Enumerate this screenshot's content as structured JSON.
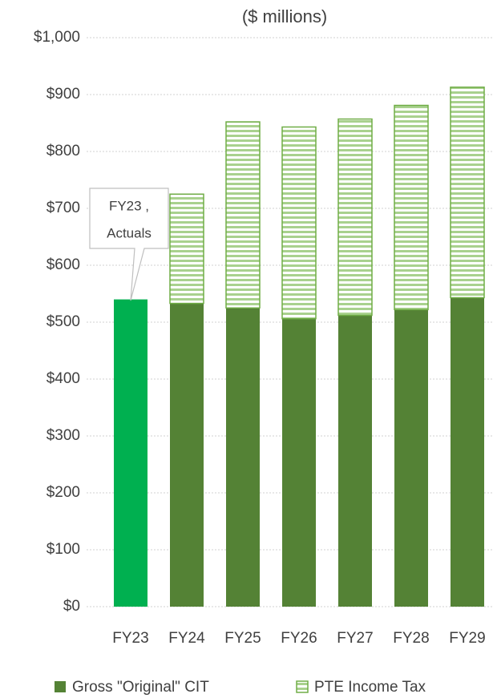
{
  "chart_data": {
    "type": "stacked_bar",
    "title": "($ millions)",
    "categories": [
      "FY23",
      "FY24",
      "FY25",
      "FY26",
      "FY27",
      "FY28",
      "FY29"
    ],
    "series": [
      {
        "name": "Gross \"Original\" CIT",
        "color": "#548235",
        "colors": [
          "#00b050",
          "#548235",
          "#548235",
          "#548235",
          "#548235",
          "#548235",
          "#548235"
        ],
        "values": [
          540,
          533,
          525,
          506,
          512,
          522,
          543
        ]
      },
      {
        "name": "PTE Income Tax",
        "color": "#70ad47",
        "pattern": "horizontal-stripes",
        "values": [
          null,
          192,
          327,
          337,
          345,
          359,
          370
        ]
      }
    ],
    "ylim": [
      0,
      1000
    ],
    "yticks": [
      {
        "value": 0,
        "label": "$0"
      },
      {
        "value": 100,
        "label": "$100"
      },
      {
        "value": 200,
        "label": "$200"
      },
      {
        "value": 300,
        "label": "$300"
      },
      {
        "value": 400,
        "label": "$400"
      },
      {
        "value": 500,
        "label": "$500"
      },
      {
        "value": 600,
        "label": "$600"
      },
      {
        "value": 700,
        "label": "$700"
      },
      {
        "value": 800,
        "label": "$800"
      },
      {
        "value": 900,
        "label": "$900"
      },
      {
        "value": 1000,
        "label": "$1,000"
      }
    ],
    "grid": true,
    "legend": "bottom",
    "annotation": [
      "FY23 ,",
      "Actuals"
    ]
  }
}
